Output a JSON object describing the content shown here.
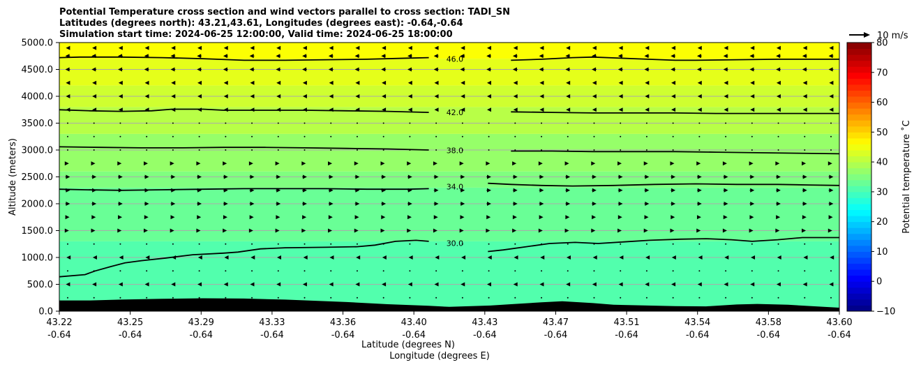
{
  "chart_data": {
    "type": "heatmap",
    "title_lines": [
      "Potential Temperature cross section and wind vectors parallel to cross section: TADI_SN",
      "Latitudes (degrees north): 43.21,43.61, Longitudes (degrees east): -0.64,-0.64",
      "Simulation start time: 2024-06-25 12:00:00, Valid time: 2024-06-25 18:00:00"
    ],
    "ylabel": "Altitude (meters)",
    "xlabel_lines": [
      "Latitude (degrees N)",
      "Longitude (degrees E)"
    ],
    "ylim": [
      0,
      5000
    ],
    "y_ticks": [
      "0.0",
      "500.0",
      "1000.0",
      "1500.0",
      "2000.0",
      "2500.0",
      "3000.0",
      "3500.0",
      "4000.0",
      "4500.0",
      "5000.0"
    ],
    "x_ticks": [
      {
        "lat": "43.22",
        "lon": "-0.64"
      },
      {
        "lat": "43.25",
        "lon": "-0.64"
      },
      {
        "lat": "43.29",
        "lon": "-0.64"
      },
      {
        "lat": "43.33",
        "lon": "-0.64"
      },
      {
        "lat": "43.36",
        "lon": "-0.64"
      },
      {
        "lat": "43.40",
        "lon": "-0.64"
      },
      {
        "lat": "43.43",
        "lon": "-0.64"
      },
      {
        "lat": "43.47",
        "lon": "-0.64"
      },
      {
        "lat": "43.51",
        "lon": "-0.64"
      },
      {
        "lat": "43.54",
        "lon": "-0.64"
      },
      {
        "lat": "43.58",
        "lon": "-0.64"
      },
      {
        "lat": "43.60",
        "lon": "-0.64"
      }
    ],
    "grid": true,
    "x_range": [
      43.22,
      43.6
    ],
    "colorbar": {
      "label": "Potential temperature $^\\circ$C",
      "min": -10,
      "max": 80,
      "ticks": [
        -10,
        0,
        10,
        20,
        30,
        40,
        50,
        60,
        70,
        80
      ],
      "colormap": "jet"
    },
    "vector_key": {
      "label": "10 m/s"
    },
    "background_bands": [
      {
        "from": 0,
        "to": 1300,
        "value": 31
      },
      {
        "from": 1300,
        "to": 2300,
        "value": 33
      },
      {
        "from": 2300,
        "to": 2600,
        "value": 35
      },
      {
        "from": 2600,
        "to": 3300,
        "value": 37
      },
      {
        "from": 3300,
        "to": 3800,
        "value": 40
      },
      {
        "from": 3800,
        "to": 4200,
        "value": 42
      },
      {
        "from": 4200,
        "to": 4700,
        "value": 44
      },
      {
        "from": 4700,
        "to": 5000,
        "value": 46
      }
    ],
    "contours": [
      {
        "label": "30.0",
        "label_x": 43.4127,
        "points": [
          [
            43.22,
            640
          ],
          [
            43.2325,
            680
          ],
          [
            43.2375,
            750
          ],
          [
            43.245,
            830
          ],
          [
            43.252,
            900
          ],
          [
            43.26,
            940
          ],
          [
            43.272,
            990
          ],
          [
            43.285,
            1050
          ],
          [
            43.3,
            1080
          ],
          [
            43.307,
            1100
          ],
          [
            43.318,
            1160
          ],
          [
            43.33,
            1180
          ],
          [
            43.35,
            1190
          ],
          [
            43.365,
            1200
          ],
          [
            43.3738,
            1230
          ],
          [
            43.3838,
            1300
          ],
          [
            43.3938,
            1320
          ],
          [
            43.4,
            1300
          ],
          [
            43.4125,
            1270
          ],
          [
            43.42,
            1180
          ],
          [
            43.4288,
            1110
          ],
          [
            43.4363,
            1140
          ],
          [
            43.4475,
            1200
          ],
          [
            43.4588,
            1260
          ],
          [
            43.4713,
            1280
          ],
          [
            43.4825,
            1260
          ],
          [
            43.495,
            1290
          ],
          [
            43.5075,
            1320
          ],
          [
            43.5225,
            1340
          ],
          [
            43.535,
            1350
          ],
          [
            43.5475,
            1330
          ],
          [
            43.5575,
            1300
          ],
          [
            43.57,
            1330
          ],
          [
            43.582,
            1370
          ],
          [
            43.6,
            1370
          ]
        ]
      },
      {
        "label": "34.0",
        "label_x": 43.4127,
        "points": [
          [
            43.22,
            2270
          ],
          [
            43.2325,
            2260
          ],
          [
            43.25,
            2250
          ],
          [
            43.27,
            2260
          ],
          [
            43.29,
            2270
          ],
          [
            43.31,
            2280
          ],
          [
            43.33,
            2280
          ],
          [
            43.35,
            2280
          ],
          [
            43.37,
            2270
          ],
          [
            43.39,
            2270
          ],
          [
            43.4,
            2280
          ],
          [
            43.41,
            2310
          ],
          [
            43.42,
            2350
          ],
          [
            43.4288,
            2380
          ],
          [
            43.44,
            2360
          ],
          [
            43.455,
            2340
          ],
          [
            43.47,
            2330
          ],
          [
            43.49,
            2340
          ],
          [
            43.51,
            2360
          ],
          [
            43.53,
            2370
          ],
          [
            43.55,
            2360
          ],
          [
            43.57,
            2360
          ],
          [
            43.585,
            2350
          ],
          [
            43.6,
            2340
          ]
        ]
      },
      {
        "label": "38.0",
        "label_x": 43.4127,
        "points": [
          [
            43.22,
            3060
          ],
          [
            43.24,
            3050
          ],
          [
            43.26,
            3040
          ],
          [
            43.28,
            3040
          ],
          [
            43.3,
            3050
          ],
          [
            43.32,
            3050
          ],
          [
            43.34,
            3040
          ],
          [
            43.36,
            3030
          ],
          [
            43.38,
            3020
          ],
          [
            43.4,
            3000
          ],
          [
            43.42,
            2990
          ],
          [
            43.44,
            2980
          ],
          [
            43.46,
            2980
          ],
          [
            43.48,
            2970
          ],
          [
            43.5,
            2970
          ],
          [
            43.52,
            2970
          ],
          [
            43.54,
            2960
          ],
          [
            43.56,
            2950
          ],
          [
            43.58,
            2940
          ],
          [
            43.6,
            2930
          ]
        ]
      },
      {
        "label": "42.0",
        "label_x": 43.4127,
        "points": [
          [
            43.22,
            3750
          ],
          [
            43.235,
            3730
          ],
          [
            43.25,
            3720
          ],
          [
            43.265,
            3730
          ],
          [
            43.275,
            3760
          ],
          [
            43.29,
            3760
          ],
          [
            43.3,
            3740
          ],
          [
            43.32,
            3740
          ],
          [
            43.34,
            3740
          ],
          [
            43.36,
            3730
          ],
          [
            43.38,
            3720
          ],
          [
            43.4,
            3700
          ],
          [
            43.42,
            3700
          ],
          [
            43.44,
            3710
          ],
          [
            43.46,
            3700
          ],
          [
            43.48,
            3690
          ],
          [
            43.5,
            3690
          ],
          [
            43.52,
            3690
          ],
          [
            43.54,
            3680
          ],
          [
            43.56,
            3680
          ],
          [
            43.58,
            3680
          ],
          [
            43.6,
            3680
          ]
        ]
      },
      {
        "label": "46.0",
        "label_x": 43.4127,
        "points": [
          [
            43.22,
            4720
          ],
          [
            43.23,
            4730
          ],
          [
            43.25,
            4730
          ],
          [
            43.27,
            4720
          ],
          [
            43.29,
            4700
          ],
          [
            43.31,
            4670
          ],
          [
            43.33,
            4670
          ],
          [
            43.35,
            4680
          ],
          [
            43.37,
            4690
          ],
          [
            43.39,
            4710
          ],
          [
            43.4,
            4720
          ],
          [
            43.41,
            4700
          ],
          [
            43.42,
            4680
          ],
          [
            43.44,
            4670
          ],
          [
            43.455,
            4690
          ],
          [
            43.47,
            4720
          ],
          [
            43.48,
            4730
          ],
          [
            43.5,
            4700
          ],
          [
            43.52,
            4670
          ],
          [
            43.53,
            4670
          ],
          [
            43.55,
            4680
          ],
          [
            43.57,
            4690
          ],
          [
            43.6,
            4690
          ]
        ]
      }
    ],
    "terrain": [
      [
        43.22,
        200
      ],
      [
        43.235,
        200
      ],
      [
        43.25,
        215
      ],
      [
        43.27,
        230
      ],
      [
        43.29,
        240
      ],
      [
        43.31,
        235
      ],
      [
        43.33,
        215
      ],
      [
        43.36,
        170
      ],
      [
        43.38,
        130
      ],
      [
        43.4,
        100
      ],
      [
        43.41,
        80
      ],
      [
        43.43,
        105
      ],
      [
        43.44,
        130
      ],
      [
        43.455,
        165
      ],
      [
        43.465,
        185
      ],
      [
        43.48,
        150
      ],
      [
        43.49,
        120
      ],
      [
        43.52,
        95
      ],
      [
        43.535,
        90
      ],
      [
        43.55,
        125
      ],
      [
        43.56,
        135
      ],
      [
        43.575,
        120
      ],
      [
        43.6,
        65
      ]
    ],
    "wind_levels": [
      {
        "altitude": 250,
        "u": 0
      },
      {
        "altitude": 500,
        "u": -2
      },
      {
        "altitude": 750,
        "u": 0
      },
      {
        "altitude": 1000,
        "u": -1
      },
      {
        "altitude": 1250,
        "u": 0
      },
      {
        "altitude": 1500,
        "u": 1
      },
      {
        "altitude": 1750,
        "u": 2
      },
      {
        "altitude": 2000,
        "u": 3
      },
      {
        "altitude": 2250,
        "u": 3
      },
      {
        "altitude": 2500,
        "u": 3
      },
      {
        "altitude": 2750,
        "u": 1
      },
      {
        "altitude": 3000,
        "u": 0
      },
      {
        "altitude": 3250,
        "u": 0
      },
      {
        "altitude": 3500,
        "u": 0
      },
      {
        "altitude": 3750,
        "u": -2
      },
      {
        "altitude": 4000,
        "u": -2
      },
      {
        "altitude": 4250,
        "u": -2
      },
      {
        "altitude": 4500,
        "u": -3
      },
      {
        "altitude": 4750,
        "u": -3
      },
      {
        "altitude": 4900,
        "u": -2
      }
    ]
  }
}
